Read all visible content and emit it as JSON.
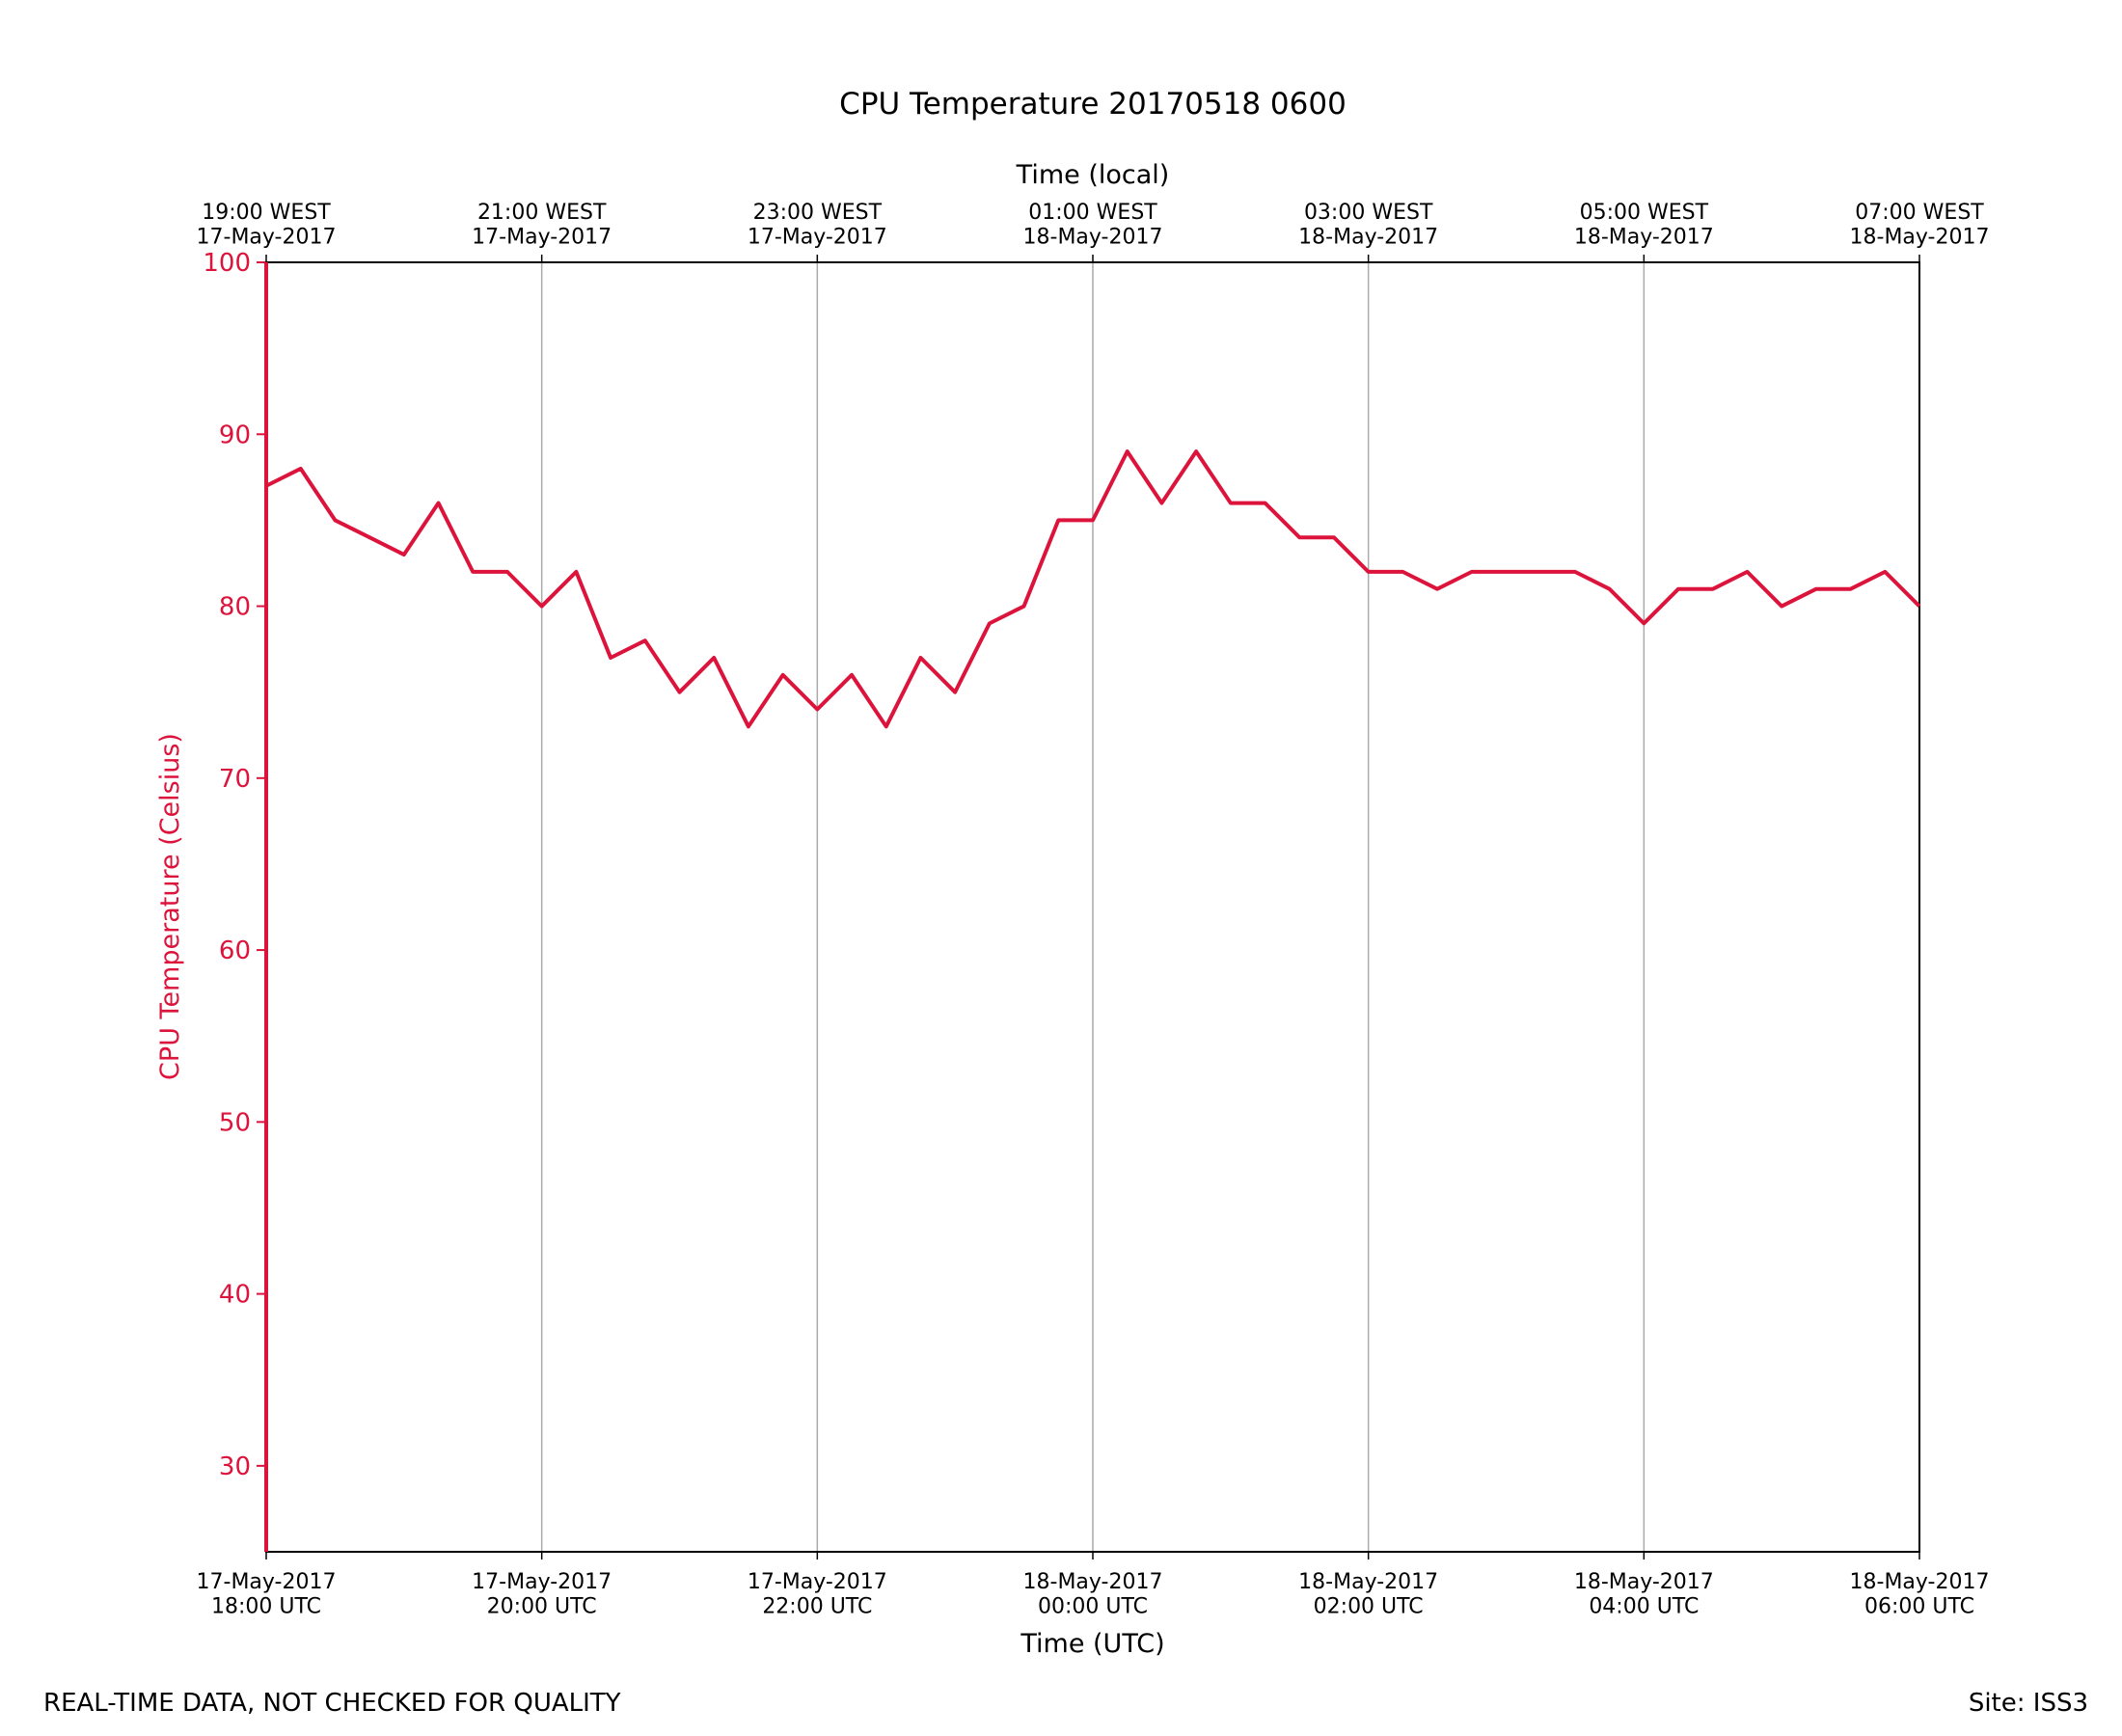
{
  "chart_data": {
    "type": "line",
    "title": "CPU Temperature 20170518 0600",
    "xlabel": "Time (UTC)",
    "x2label": "Time (local)",
    "ylabel": "CPU Temperature (Celsius)",
    "footer_left": "REAL-TIME DATA, NOT CHECKED FOR QUALITY",
    "footer_right": "Site: ISS3",
    "xlim": [
      0,
      12
    ],
    "xticks": [
      {
        "value": 0,
        "label": "17-May-2017\n18:00 UTC"
      },
      {
        "value": 2,
        "label": "17-May-2017\n20:00 UTC"
      },
      {
        "value": 4,
        "label": "17-May-2017\n22:00 UTC"
      },
      {
        "value": 6,
        "label": "18-May-2017\n00:00 UTC"
      },
      {
        "value": 8,
        "label": "18-May-2017\n02:00 UTC"
      },
      {
        "value": 10,
        "label": "18-May-2017\n04:00 UTC"
      },
      {
        "value": 12,
        "label": "18-May-2017\n06:00 UTC"
      }
    ],
    "x2ticks": [
      {
        "value": 0,
        "label": "19:00 WEST\n17-May-2017"
      },
      {
        "value": 2,
        "label": "21:00 WEST\n17-May-2017"
      },
      {
        "value": 4,
        "label": "23:00 WEST\n17-May-2017"
      },
      {
        "value": 6,
        "label": "01:00 WEST\n18-May-2017"
      },
      {
        "value": 8,
        "label": "03:00 WEST\n18-May-2017"
      },
      {
        "value": 10,
        "label": "05:00 WEST\n18-May-2017"
      },
      {
        "value": 12,
        "label": "07:00 WEST\n18-May-2017"
      }
    ],
    "ylim": [
      25,
      100
    ],
    "yticks": [
      30,
      40,
      50,
      60,
      70,
      80,
      90,
      100
    ],
    "grid": true,
    "x": [
      0,
      0.25,
      0.5,
      0.75,
      1,
      1.25,
      1.5,
      1.75,
      2,
      2.25,
      2.5,
      2.75,
      3,
      3.25,
      3.5,
      3.75,
      4,
      4.25,
      4.5,
      4.75,
      5,
      5.25,
      5.5,
      5.75,
      6,
      6.25,
      6.5,
      6.75,
      7,
      7.25,
      7.5,
      7.75,
      8,
      8.25,
      8.5,
      8.75,
      9,
      9.25,
      9.5,
      9.75,
      10,
      10.25,
      10.5,
      10.75,
      11,
      11.25,
      11.5,
      11.75,
      12
    ],
    "series": [
      {
        "name": "CPU Temperature",
        "color": "#dc143c",
        "values": [
          87,
          88,
          85,
          84,
          83,
          86,
          82,
          82,
          80,
          82,
          77,
          78,
          75,
          77,
          73,
          76,
          74,
          76,
          73,
          77,
          75,
          79,
          80,
          85,
          85,
          89,
          86,
          89,
          86,
          86,
          84,
          84,
          82,
          82,
          81,
          82,
          82,
          82,
          82,
          81,
          79,
          81,
          81,
          82,
          80,
          81,
          81,
          82,
          80
        ]
      }
    ]
  }
}
